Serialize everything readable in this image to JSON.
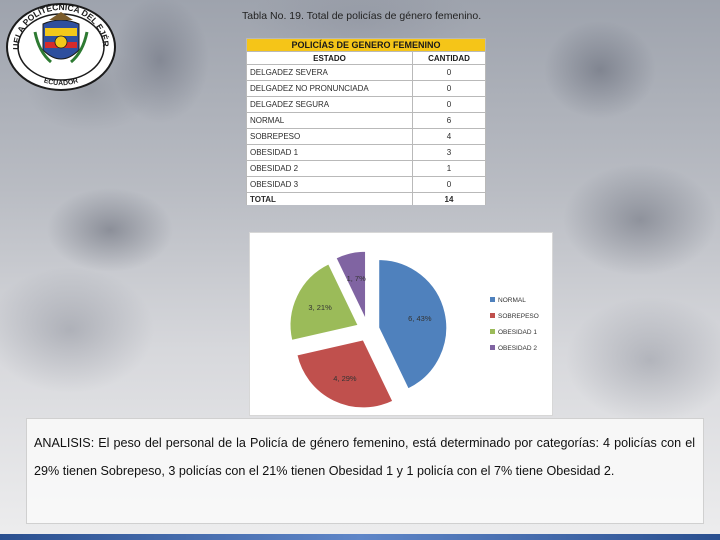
{
  "emblem": {
    "top_text": "ESCUELA POLITÉCNICA DEL EJÉRCITO",
    "bottom_text": "ECUADOR"
  },
  "table": {
    "title": "Tabla No. 19. Total de policías de género femenino.",
    "header": "POLICÍAS DE GENERO FEMENINO",
    "col_estado": "ESTADO",
    "col_cantidad": "CANTIDAD",
    "rows": [
      {
        "estado": "DELGADEZ SEVERA",
        "cantidad": "0"
      },
      {
        "estado": "DELGADEZ NO PRONUNCIADA",
        "cantidad": "0"
      },
      {
        "estado": "DELGADEZ SEGURA",
        "cantidad": "0"
      },
      {
        "estado": "NORMAL",
        "cantidad": "6"
      },
      {
        "estado": "SOBREPESO",
        "cantidad": "4"
      },
      {
        "estado": "OBESIDAD 1",
        "cantidad": "3"
      },
      {
        "estado": "OBESIDAD 2",
        "cantidad": "1"
      },
      {
        "estado": "OBESIDAD 3",
        "cantidad": "0"
      }
    ],
    "total_label": "TOTAL",
    "total_value": "14"
  },
  "chart_data": {
    "type": "pie",
    "slices": [
      {
        "label": "NORMAL",
        "value": 6,
        "data_label": "6, 43%",
        "color": "#4f81bd"
      },
      {
        "label": "SOBREPESO",
        "value": 4,
        "data_label": "4, 29%",
        "color": "#c0504d"
      },
      {
        "label": "OBESIDAD 1",
        "value": 3,
        "data_label": "3, 21%",
        "color": "#9bbb59"
      },
      {
        "label": "OBESIDAD 2",
        "value": 1,
        "data_label": "1, 7%",
        "color": "#8064a2"
      }
    ],
    "exploded": true,
    "legend_position": "right"
  },
  "analysis": {
    "text": "ANALISIS: El peso del personal de la Policía de género femenino, está determinado por categorías: 4 policías con el 29% tienen Sobrepeso, 3 policías con el 21% tienen Obesidad 1 y 1 policía con el 7% tiene Obesidad 2."
  },
  "colors": {
    "table_header": "#f5c518",
    "stripe": "#2a4f8f"
  }
}
